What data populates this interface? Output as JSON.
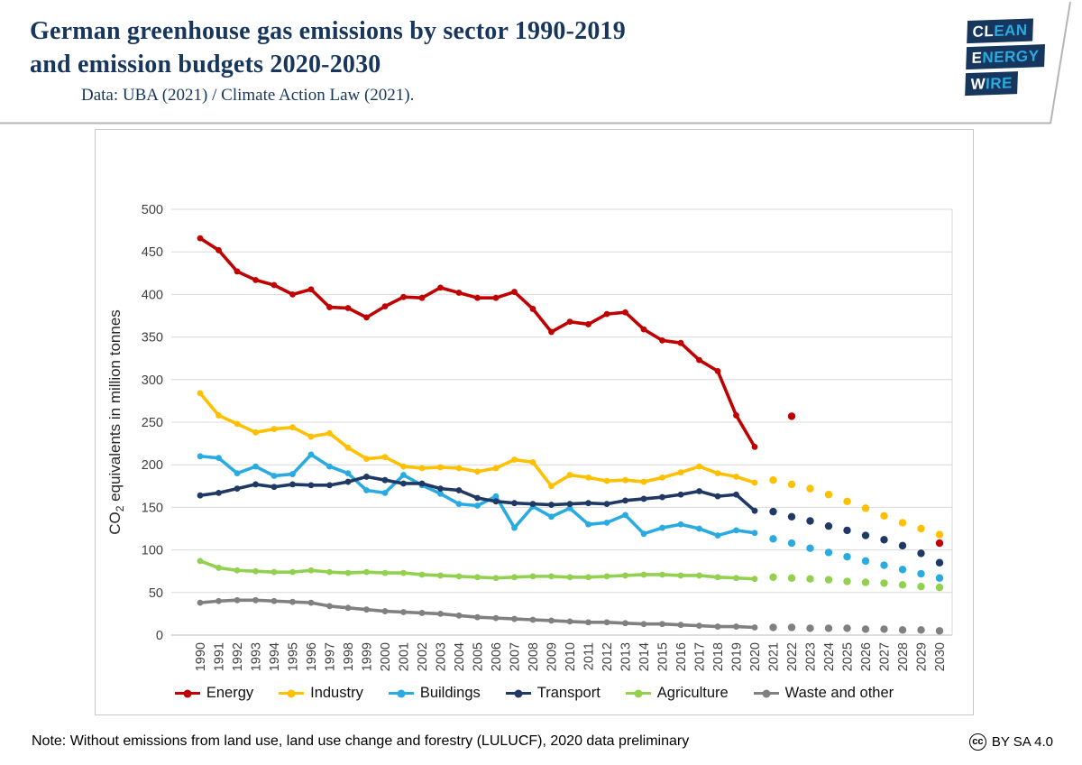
{
  "header": {
    "title_line1": "German greenhouse gas emissions by sector 1990-2019",
    "title_line2": "and emission budgets 2020-2030",
    "subtitle": "Data: UBA (2021) / Climate Action Law (2021).",
    "logo": {
      "bg": "#17365d",
      "cyan": "#29abe2",
      "rows": [
        {
          "white": "CL",
          "cyan": "EAN"
        },
        {
          "white": "E",
          "cyan": "NERGY"
        },
        {
          "white": "W",
          "cyan": "IRE"
        }
      ]
    }
  },
  "footer": {
    "note": "Note: Without emissions from land use, land use change and forestry (LULUCF), 2020 data preliminary",
    "cc_icon": "cc",
    "license": "BY SA 4.0"
  },
  "chart_data": {
    "type": "line",
    "ylabel_parts": {
      "pre": "CO",
      "sub": "2",
      "post": " equivalents in million tonnes"
    },
    "ylim": [
      0,
      500
    ],
    "ytick_step": 50,
    "grid": "horizontal",
    "legend_position": "bottom",
    "years_solid": [
      1990,
      1991,
      1992,
      1993,
      1994,
      1995,
      1996,
      1997,
      1998,
      1999,
      2000,
      2001,
      2002,
      2003,
      2004,
      2005,
      2006,
      2007,
      2008,
      2009,
      2010,
      2011,
      2012,
      2013,
      2014,
      2015,
      2016,
      2017,
      2018,
      2019,
      2020
    ],
    "years_all": [
      1990,
      1991,
      1992,
      1993,
      1994,
      1995,
      1996,
      1997,
      1998,
      1999,
      2000,
      2001,
      2002,
      2003,
      2004,
      2005,
      2006,
      2007,
      2008,
      2009,
      2010,
      2011,
      2012,
      2013,
      2014,
      2015,
      2016,
      2017,
      2018,
      2019,
      2020,
      2021,
      2022,
      2023,
      2024,
      2025,
      2026,
      2027,
      2028,
      2029,
      2030
    ],
    "series": [
      {
        "name": "Energy",
        "color": "#c00000",
        "values": [
          466,
          452,
          427,
          417,
          411,
          400,
          406,
          385,
          384,
          373,
          386,
          397,
          396,
          408,
          402,
          396,
          396,
          403,
          383,
          356,
          368,
          365,
          377,
          379,
          359,
          346,
          343,
          323,
          310,
          258,
          221
        ]
      },
      {
        "name": "Industry",
        "color": "#ffc000",
        "values": [
          284,
          258,
          248,
          238,
          242,
          244,
          233,
          237,
          220,
          207,
          209,
          198,
          196,
          197,
          196,
          192,
          196,
          206,
          203,
          175,
          188,
          185,
          181,
          182,
          180,
          185,
          191,
          198,
          190,
          186,
          179
        ]
      },
      {
        "name": "Buildings",
        "color": "#29abe2",
        "values": [
          210,
          208,
          190,
          198,
          187,
          189,
          212,
          198,
          190,
          170,
          167,
          188,
          176,
          166,
          154,
          152,
          163,
          126,
          151,
          139,
          149,
          130,
          132,
          141,
          119,
          126,
          130,
          125,
          117,
          123,
          120
        ]
      },
      {
        "name": "Transport",
        "color": "#1f3864",
        "values": [
          164,
          167,
          172,
          177,
          174,
          177,
          176,
          176,
          180,
          186,
          182,
          178,
          178,
          172,
          170,
          161,
          157,
          155,
          154,
          153,
          154,
          155,
          154,
          158,
          160,
          162,
          165,
          169,
          163,
          165,
          146
        ]
      },
      {
        "name": "Agriculture",
        "color": "#92d050",
        "values": [
          87,
          79,
          76,
          75,
          74,
          74,
          76,
          74,
          73,
          74,
          73,
          73,
          71,
          70,
          69,
          68,
          67,
          68,
          69,
          69,
          68,
          68,
          69,
          70,
          71,
          71,
          70,
          70,
          68,
          67,
          66
        ]
      },
      {
        "name": "Waste and other",
        "color": "#808080",
        "values": [
          38,
          40,
          41,
          41,
          40,
          39,
          38,
          34,
          32,
          30,
          28,
          27,
          26,
          25,
          23,
          21,
          20,
          19,
          18,
          17,
          16,
          15,
          15,
          14,
          13,
          13,
          12,
          11,
          10,
          10,
          9
        ]
      }
    ],
    "budget_series": [
      {
        "name": "Energy budget",
        "color": "#c00000",
        "years": [
          2022,
          2030
        ],
        "values": [
          257,
          108
        ]
      },
      {
        "name": "Industry budget",
        "color": "#ffc000",
        "years": [
          2021,
          2022,
          2023,
          2024,
          2025,
          2026,
          2027,
          2028,
          2029,
          2030
        ],
        "values": [
          182,
          177,
          172,
          165,
          157,
          149,
          140,
          132,
          125,
          118
        ]
      },
      {
        "name": "Buildings budget",
        "color": "#29abe2",
        "years": [
          2021,
          2022,
          2023,
          2024,
          2025,
          2026,
          2027,
          2028,
          2029,
          2030
        ],
        "values": [
          113,
          108,
          102,
          97,
          92,
          87,
          82,
          77,
          72,
          67
        ]
      },
      {
        "name": "Transport budget",
        "color": "#1f3864",
        "years": [
          2021,
          2022,
          2023,
          2024,
          2025,
          2026,
          2027,
          2028,
          2029,
          2030
        ],
        "values": [
          145,
          139,
          134,
          128,
          123,
          117,
          112,
          105,
          96,
          85
        ]
      },
      {
        "name": "Agriculture budget",
        "color": "#92d050",
        "years": [
          2021,
          2022,
          2023,
          2024,
          2025,
          2026,
          2027,
          2028,
          2029,
          2030
        ],
        "values": [
          68,
          67,
          66,
          65,
          63,
          62,
          61,
          59,
          57,
          56
        ]
      },
      {
        "name": "Waste and other budget",
        "color": "#808080",
        "years": [
          2021,
          2022,
          2023,
          2024,
          2025,
          2026,
          2027,
          2028,
          2029,
          2030
        ],
        "values": [
          9,
          9,
          8,
          8,
          8,
          7,
          7,
          6,
          6,
          5
        ]
      }
    ]
  }
}
